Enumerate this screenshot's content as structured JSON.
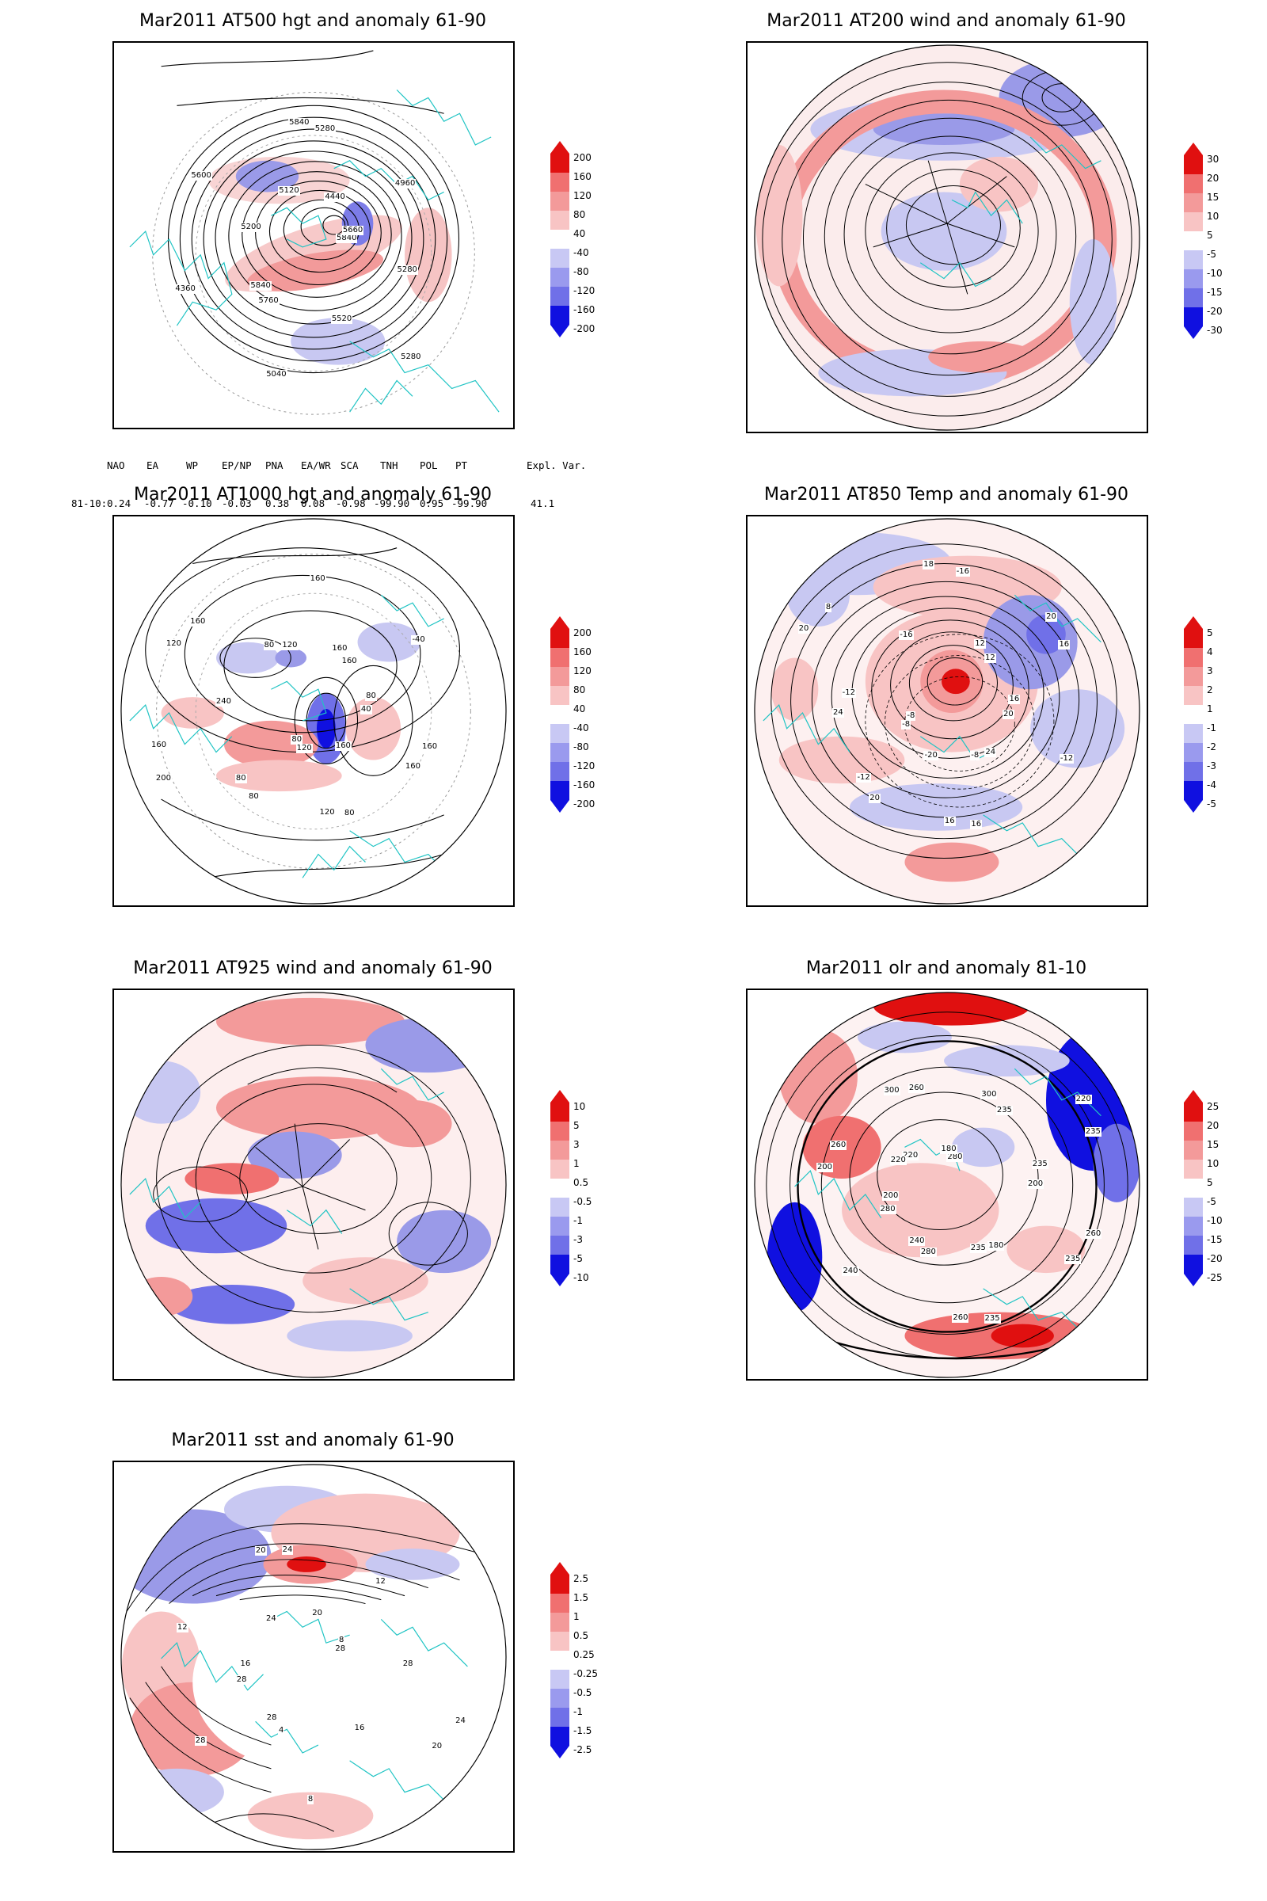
{
  "panels": [
    {
      "id": "at500",
      "title": "Mar2011 AT500 hgt and anomaly 61-90",
      "colorbar": {
        "labels": [
          "200",
          "160",
          "120",
          "80",
          "40",
          "-40",
          "-80",
          "-120",
          "-160",
          "-200"
        ]
      },
      "contour_labels": [
        "5840",
        "5840",
        "5280",
        "5280",
        "5200",
        "4960",
        "5040",
        "5120",
        "5280",
        "4360",
        "4440",
        "5520",
        "5600",
        "5660",
        "5760",
        "5840"
      ]
    },
    {
      "id": "at200",
      "title": "Mar2011 AT200 wind and anomaly 61-90",
      "colorbar": {
        "labels": [
          "30",
          "20",
          "15",
          "10",
          "5",
          "-5",
          "-10",
          "-15",
          "-20",
          "-30"
        ]
      },
      "contour_labels": []
    },
    {
      "id": "at1000",
      "title": "Mar2011 AT1000 hgt and anomaly 61-90",
      "colorbar": {
        "labels": [
          "200",
          "160",
          "120",
          "80",
          "40",
          "-40",
          "-80",
          "-120",
          "-160",
          "-200"
        ]
      },
      "contour_labels": [
        "80",
        "120",
        "160",
        "160",
        "160",
        "120",
        "160",
        "40",
        "80",
        "160",
        "160",
        "240",
        "-40",
        "120",
        "80",
        "160",
        "200",
        "160",
        "80",
        "120",
        "80",
        "80"
      ]
    },
    {
      "id": "at850",
      "title": "Mar2011 AT850 Temp and anomaly 61-90",
      "colorbar": {
        "labels": [
          "5",
          "4",
          "3",
          "2",
          "1",
          "-1",
          "-2",
          "-3",
          "-4",
          "-5"
        ]
      },
      "contour_labels": [
        "-8",
        "12",
        "16",
        "8",
        "20",
        "-12",
        "-16",
        "-8",
        "-12",
        "16",
        "-20",
        "-16",
        "-12",
        "-8",
        "12",
        "16",
        "20",
        "16",
        "20",
        "18",
        "24",
        "24",
        "20"
      ]
    },
    {
      "id": "at925",
      "title": "Mar2011 AT925 wind and anomaly 61-90",
      "colorbar": {
        "labels": [
          "10",
          "5",
          "3",
          "1",
          "0.5",
          "-0.5",
          "-1",
          "-3",
          "-5",
          "-10"
        ]
      },
      "contour_labels": []
    },
    {
      "id": "olr",
      "title": "Mar2011 olr and anomaly 81-10",
      "colorbar": {
        "labels": [
          "25",
          "20",
          "15",
          "10",
          "5",
          "-5",
          "-10",
          "-15",
          "-20",
          "-25"
        ]
      },
      "contour_labels": [
        "280",
        "235",
        "260",
        "235",
        "240",
        "260",
        "235",
        "200",
        "235",
        "260",
        "220",
        "200",
        "240",
        "180",
        "180",
        "200",
        "220",
        "280",
        "300",
        "260",
        "280",
        "300",
        "235",
        "220",
        "235"
      ]
    },
    {
      "id": "sst",
      "title": "Mar2011 sst and anomaly 61-90",
      "colorbar": {
        "labels": [
          "2.5",
          "1.5",
          "1",
          "0.5",
          "0.25",
          "-0.25",
          "-0.5",
          "-1",
          "-1.5",
          "-2.5"
        ]
      },
      "contour_labels": [
        "28",
        "28",
        "24",
        "20",
        "16",
        "12",
        "8",
        "24",
        "28",
        "28",
        "20",
        "16",
        "12",
        "8",
        "4",
        "20",
        "24",
        "28"
      ]
    }
  ],
  "index_table": {
    "headers": [
      "NAO",
      "EA",
      "WP",
      "EP/NP",
      "PNA",
      "EA/WR",
      "SCA",
      "TNH",
      "POL",
      "PT",
      "Expl. Var."
    ],
    "row_label": "81-10:",
    "values": [
      "0.24",
      "-0.77",
      "-0.10",
      "-0.03",
      "0.38",
      "0.08",
      "-0.98",
      "-99.90",
      "0.95",
      "-99.90",
      "41.1"
    ]
  },
  "colors": {
    "land_outline": "#20c4c4",
    "contour": "#000000",
    "warm_strong": "#e01010",
    "warm_mid": "#f07070",
    "warm_light": "#f8c4c4",
    "cool_light": "#c8c8f4",
    "cool_mid": "#7070e8",
    "cool_strong": "#1010e0"
  }
}
